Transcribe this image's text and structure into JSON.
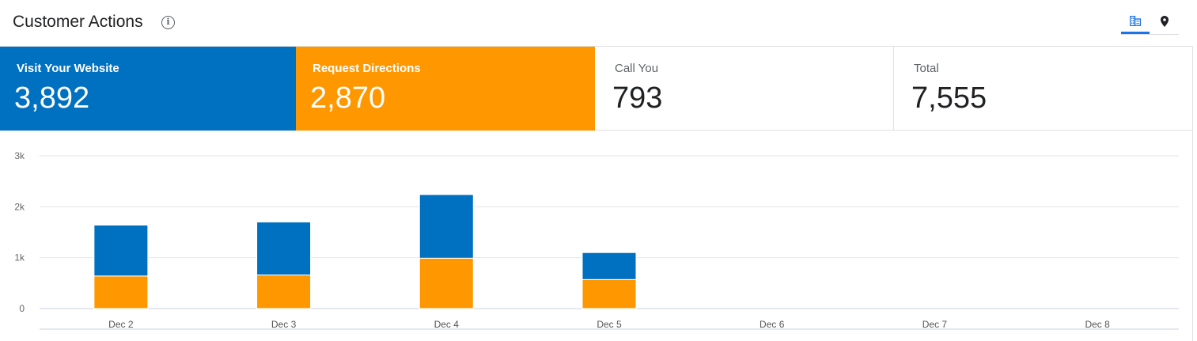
{
  "header": {
    "title": "Customer Actions",
    "info_icon": "info-icon",
    "view_toggle": [
      {
        "icon": "building-icon",
        "active": true
      },
      {
        "icon": "map-pin-icon",
        "active": false
      }
    ]
  },
  "tiles": {
    "website": {
      "label": "Visit Your Website",
      "value": "3,892",
      "color": "#0070c0"
    },
    "directions": {
      "label": "Request Directions",
      "value": "2,870",
      "color": "#ff9800"
    },
    "call": {
      "label": "Call You",
      "value": "793"
    },
    "total": {
      "label": "Total",
      "value": "7,555"
    }
  },
  "chart_data": {
    "type": "bar",
    "stacked": true,
    "categories": [
      "Dec 2",
      "Dec 3",
      "Dec 4",
      "Dec 5",
      "Dec 6",
      "Dec 7",
      "Dec 8"
    ],
    "series": [
      {
        "name": "Request Directions",
        "color": "#ff9800",
        "values": [
          640,
          660,
          990,
          570,
          0,
          0,
          0
        ]
      },
      {
        "name": "Visit Your Website",
        "color": "#0070c0",
        "values": [
          1000,
          1040,
          1250,
          530,
          0,
          0,
          0
        ]
      }
    ],
    "y_ticks": [
      "0",
      "1k",
      "2k",
      "3k"
    ],
    "ylim": [
      0,
      3000
    ],
    "grid": true
  }
}
